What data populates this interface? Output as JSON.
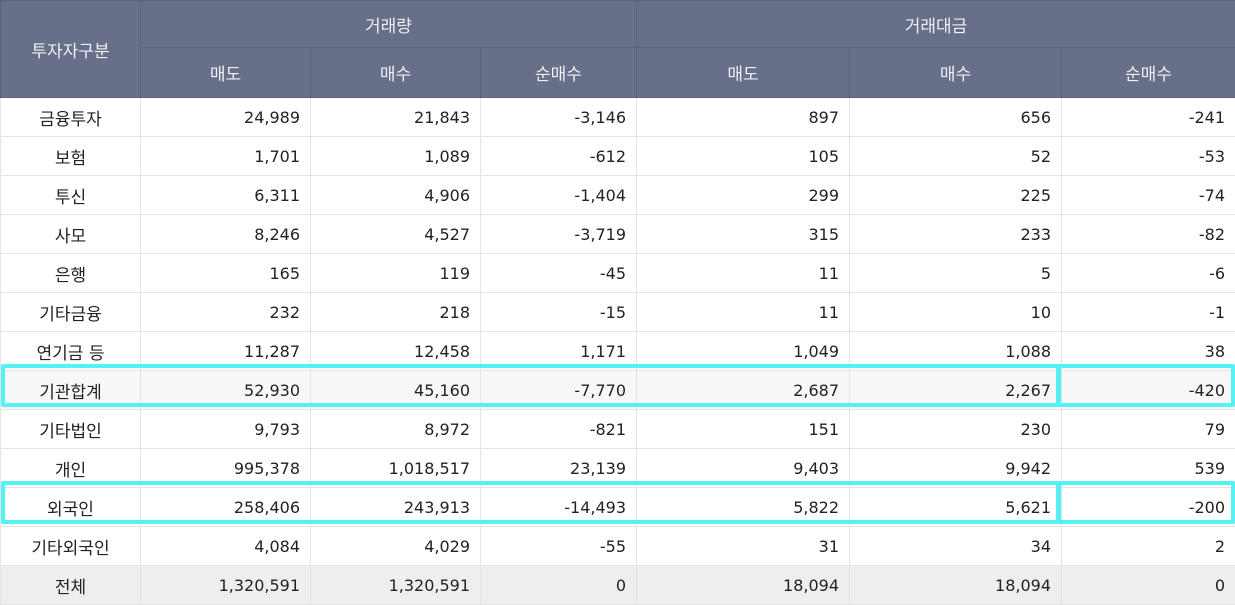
{
  "header": {
    "investor_type": "투자자구분",
    "group_volume": "거래량",
    "group_value": "거래대금",
    "sub": [
      "매도",
      "매수",
      "순매수",
      "매도",
      "매수",
      "순매수"
    ]
  },
  "rows": [
    {
      "label": "금융투자",
      "values": [
        "24,989",
        "21,843",
        "-3,146",
        "897",
        "656",
        "-241"
      ]
    },
    {
      "label": "보험",
      "values": [
        "1,701",
        "1,089",
        "-612",
        "105",
        "52",
        "-53"
      ]
    },
    {
      "label": "투신",
      "values": [
        "6,311",
        "4,906",
        "-1,404",
        "299",
        "225",
        "-74"
      ]
    },
    {
      "label": "사모",
      "values": [
        "8,246",
        "4,527",
        "-3,719",
        "315",
        "233",
        "-82"
      ]
    },
    {
      "label": "은행",
      "values": [
        "165",
        "119",
        "-45",
        "11",
        "5",
        "-6"
      ]
    },
    {
      "label": "기타금융",
      "values": [
        "232",
        "218",
        "-15",
        "11",
        "10",
        "-1"
      ]
    },
    {
      "label": "연기금 등",
      "values": [
        "11,287",
        "12,458",
        "1,171",
        "1,049",
        "1,088",
        "38"
      ]
    },
    {
      "label": "기관합계",
      "values": [
        "52,930",
        "45,160",
        "-7,770",
        "2,687",
        "2,267",
        "-420"
      ]
    },
    {
      "label": "기타법인",
      "values": [
        "9,793",
        "8,972",
        "-821",
        "151",
        "230",
        "79"
      ]
    },
    {
      "label": "개인",
      "values": [
        "995,378",
        "1,018,517",
        "23,139",
        "9,403",
        "9,942",
        "539"
      ]
    },
    {
      "label": "외국인",
      "values": [
        "258,406",
        "243,913",
        "-14,493",
        "5,822",
        "5,621",
        "-200"
      ]
    },
    {
      "label": "기타외국인",
      "values": [
        "4,084",
        "4,029",
        "-55",
        "31",
        "34",
        "2"
      ]
    },
    {
      "label": "전체",
      "values": [
        "1,320,591",
        "1,320,591",
        "0",
        "18,094",
        "18,094",
        "0"
      ]
    }
  ],
  "highlight_color": "#55f1f4",
  "header_color": "#687089"
}
